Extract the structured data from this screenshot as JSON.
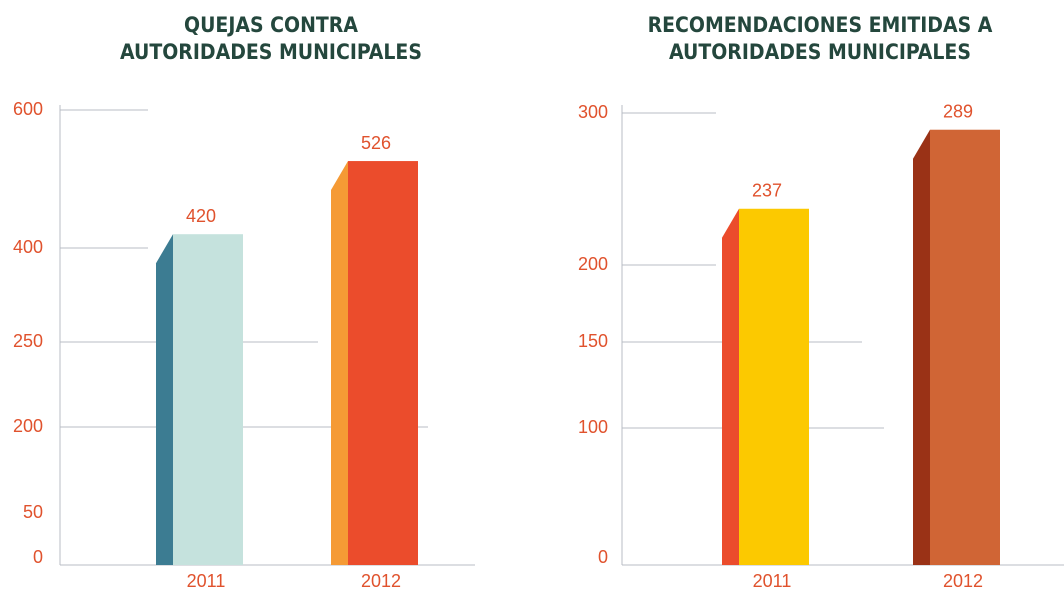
{
  "chart_data": [
    {
      "type": "bar",
      "title": [
        "QUEJAS CONTRA",
        "AUTORIDADES MUNICIPALES"
      ],
      "categories": [
        "2011",
        "2012"
      ],
      "values": [
        420,
        526
      ],
      "colors": [
        "#c5e2dd",
        "#eb4c2c"
      ],
      "side_colors": [
        "#3c7c92",
        "#f59a35"
      ],
      "ylim": [
        0,
        600
      ],
      "yticks": [
        0,
        50,
        200,
        250,
        400,
        600
      ],
      "grid": true
    },
    {
      "type": "bar",
      "title": [
        "RECOMENDACIONES EMITIDAS A",
        "AUTORIDADES MUNICIPALES"
      ],
      "categories": [
        "2011",
        "2012"
      ],
      "values": [
        237,
        289
      ],
      "colors": [
        "#fcc900",
        "#d06535"
      ],
      "side_colors": [
        "#eb4c2c",
        "#9a3216"
      ],
      "ylim": [
        0,
        300
      ],
      "yticks": [
        0,
        100,
        150,
        200,
        300
      ],
      "grid": true
    }
  ]
}
